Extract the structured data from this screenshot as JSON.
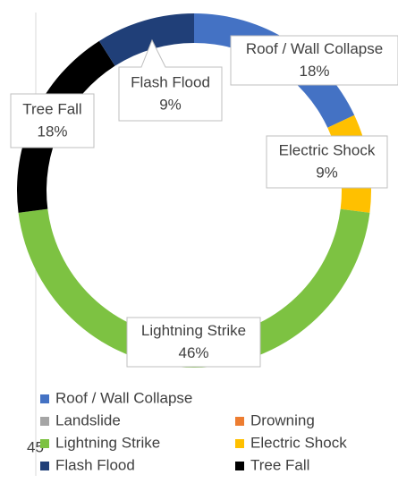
{
  "chart_data": {
    "type": "doughnut",
    "categories": [
      "Roof / Wall Collapse",
      "Drowning",
      "Landslide",
      "Electric Shock",
      "Lightning Strike",
      "Tree Fall",
      "Flash Flood"
    ],
    "values": [
      18,
      0,
      0,
      9,
      46,
      18,
      9
    ],
    "value_labels": [
      "18%",
      null,
      null,
      "9%",
      "46%",
      "18%",
      "9%"
    ],
    "colors": [
      "#4472c4",
      "#ed7d31",
      "#a5a5a5",
      "#ffc000",
      "#7dc242",
      "#000000",
      "#203f78"
    ],
    "annotations": [
      "45"
    ],
    "legend": "bottom"
  }
}
